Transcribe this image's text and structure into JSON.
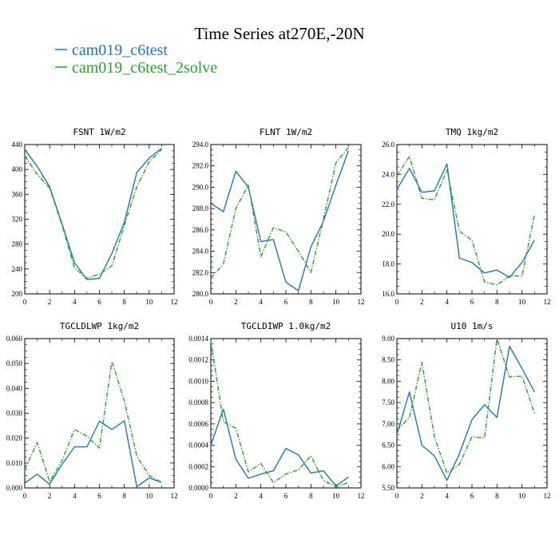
{
  "figure": {
    "title": "Time Series at270E,-20N",
    "legend": [
      {
        "name": "cam019_c6test",
        "color": "#1f77b4"
      },
      {
        "name": "cam019_c6test_2solve",
        "color": "#2ca02c"
      }
    ]
  },
  "chart_data": [
    {
      "type": "line",
      "title": "FSNT   1W/m2",
      "x": [
        0,
        1,
        2,
        3,
        4,
        5,
        6,
        7,
        8,
        9,
        10,
        11
      ],
      "xlim": [
        0,
        12
      ],
      "xticks": [
        0,
        2,
        4,
        6,
        8,
        10,
        12
      ],
      "xticklabels": [
        "0",
        "2",
        "4",
        "6",
        "8",
        "10",
        "12"
      ],
      "ylim": [
        200,
        440
      ],
      "yticks": [
        200,
        240,
        280,
        320,
        360,
        400,
        440
      ],
      "yticklabels": [
        "200",
        "240",
        "280",
        "320",
        "360",
        "400",
        "440"
      ],
      "series": [
        {
          "name": "cam019_c6test",
          "color": "#1f77b4",
          "dash": "solid",
          "values": [
            432,
            405,
            372,
            312,
            250,
            223,
            225,
            265,
            315,
            395,
            418,
            434
          ]
        },
        {
          "name": "cam019_c6test_2solve",
          "color": "#2ca02c",
          "dash": "dashdot",
          "values": [
            422,
            392,
            370,
            310,
            242,
            225,
            232,
            245,
            310,
            372,
            412,
            432
          ]
        }
      ]
    },
    {
      "type": "line",
      "title": "FLNT   1W/m2",
      "x": [
        0,
        1,
        2,
        3,
        4,
        5,
        6,
        7,
        8,
        9,
        10,
        11
      ],
      "xlim": [
        0,
        12
      ],
      "xticks": [
        0,
        2,
        4,
        6,
        8,
        10,
        12
      ],
      "xticklabels": [
        "0",
        "2",
        "4",
        "6",
        "8",
        "10",
        "12"
      ],
      "ylim": [
        280,
        294
      ],
      "yticks": [
        280,
        282,
        284,
        286,
        288,
        290,
        292,
        294
      ],
      "yticklabels": [
        "280.0",
        "282.0",
        "284.0",
        "286.0",
        "288.0",
        "290.0",
        "292.0",
        "294.0"
      ],
      "series": [
        {
          "name": "cam019_c6test",
          "color": "#1f77b4",
          "dash": "solid",
          "values": [
            288.5,
            287.7,
            291.5,
            290.0,
            284.9,
            285.1,
            281.1,
            280.3,
            284.4,
            286.8,
            290.2,
            293.4
          ]
        },
        {
          "name": "cam019_c6test_2solve",
          "color": "#2ca02c",
          "dash": "dashdot",
          "values": [
            281.5,
            282.8,
            288.0,
            290.2,
            283.5,
            286.2,
            285.8,
            284.0,
            282.0,
            287.0,
            292.3,
            293.7
          ]
        }
      ]
    },
    {
      "type": "line",
      "title": "TMQ   1kg/m2",
      "x": [
        0,
        1,
        2,
        3,
        4,
        5,
        6,
        7,
        8,
        9,
        10,
        11
      ],
      "xlim": [
        0,
        12
      ],
      "xticks": [
        0,
        2,
        4,
        6,
        8,
        10,
        12
      ],
      "xticklabels": [
        "0",
        "2",
        "4",
        "6",
        "8",
        "10",
        "12"
      ],
      "ylim": [
        16,
        26
      ],
      "yticks": [
        16,
        18,
        20,
        22,
        24,
        26
      ],
      "yticklabels": [
        "16.0",
        "18.0",
        "20.0",
        "22.0",
        "24.0",
        "26.0"
      ],
      "series": [
        {
          "name": "cam019_c6test",
          "color": "#1f77b4",
          "dash": "solid",
          "values": [
            23.0,
            24.4,
            22.8,
            22.9,
            24.7,
            18.4,
            18.1,
            17.4,
            17.6,
            17.1,
            18.1,
            19.6
          ]
        },
        {
          "name": "cam019_c6test_2solve",
          "color": "#2ca02c",
          "dash": "dashdot",
          "values": [
            23.9,
            25.2,
            22.4,
            22.3,
            24.3,
            20.2,
            19.6,
            16.8,
            16.6,
            17.2,
            17.2,
            21.3
          ]
        }
      ]
    },
    {
      "type": "line",
      "title": "TGCLDLWP   1kg/m2",
      "x": [
        0,
        1,
        2,
        3,
        4,
        5,
        6,
        7,
        8,
        9,
        10,
        11
      ],
      "xlim": [
        0,
        12
      ],
      "xticks": [
        0,
        2,
        4,
        6,
        8,
        10,
        12
      ],
      "xticklabels": [
        "0",
        "2",
        "4",
        "6",
        "8",
        "10",
        "12"
      ],
      "ylim": [
        0,
        0.06
      ],
      "yticks": [
        0,
        0.01,
        0.02,
        0.03,
        0.04,
        0.05,
        0.06
      ],
      "yticklabels": [
        "0.000",
        "0.010",
        "0.020",
        "0.030",
        "0.040",
        "0.050",
        "0.060"
      ],
      "series": [
        {
          "name": "cam019_c6test",
          "color": "#1f77b4",
          "dash": "solid",
          "values": [
            0.002,
            0.0055,
            0.0015,
            0.0095,
            0.0165,
            0.0165,
            0.0268,
            0.0235,
            0.027,
            0.0005,
            0.004,
            0.0022
          ]
        },
        {
          "name": "cam019_c6test_2solve",
          "color": "#2ca02c",
          "dash": "dashdot",
          "values": [
            0.0075,
            0.0182,
            0.0025,
            0.011,
            0.0235,
            0.0208,
            0.016,
            0.0508,
            0.035,
            0.0128,
            0.005,
            0.0022
          ]
        }
      ]
    },
    {
      "type": "line",
      "title": "TGCLDIWP   1.0kg/m2",
      "x": [
        0,
        1,
        2,
        3,
        4,
        5,
        6,
        7,
        8,
        9,
        10,
        11
      ],
      "xlim": [
        0,
        12
      ],
      "xticks": [
        0,
        2,
        4,
        6,
        8,
        10,
        12
      ],
      "xticklabels": [
        "0",
        "2",
        "4",
        "6",
        "8",
        "10",
        "12"
      ],
      "ylim": [
        0,
        0.0014
      ],
      "yticks": [
        0,
        0.0002,
        0.0004,
        0.0006,
        0.0008,
        0.001,
        0.0012,
        0.0014
      ],
      "yticklabels": [
        "0.0000",
        "0.0002",
        "0.0004",
        "0.0006",
        "0.0008",
        "0.0010",
        "0.0012",
        "0.0014"
      ],
      "series": [
        {
          "name": "cam019_c6test",
          "color": "#1f77b4",
          "dash": "solid",
          "values": [
            0.0004,
            0.00074,
            0.00027,
            9e-05,
            0.00013,
            0.00016,
            0.00037,
            0.00031,
            0.00014,
            0.00016,
            2e-05,
            0.0001
          ]
        },
        {
          "name": "cam019_c6test_2solve",
          "color": "#2ca02c",
          "dash": "dashdot",
          "values": [
            0.00138,
            0.00062,
            0.00056,
            0.00015,
            0.00023,
            5e-05,
            0.00013,
            0.00017,
            0.0003,
            7e-05,
            1e-05,
            5e-05
          ]
        }
      ]
    },
    {
      "type": "line",
      "title": "U10   1m/s",
      "x": [
        0,
        1,
        2,
        3,
        4,
        5,
        6,
        7,
        8,
        9,
        10,
        11
      ],
      "xlim": [
        0,
        12
      ],
      "xticks": [
        0,
        2,
        4,
        6,
        8,
        10,
        12
      ],
      "xticklabels": [
        "0",
        "2",
        "4",
        "6",
        "8",
        "10",
        "12"
      ],
      "ylim": [
        5.5,
        9.0
      ],
      "yticks": [
        5.5,
        6.0,
        6.5,
        7.0,
        7.5,
        8.0,
        8.5,
        9.0
      ],
      "yticklabels": [
        "5.50",
        "6.00",
        "6.50",
        "7.00",
        "7.50",
        "8.00",
        "8.50",
        "9.00"
      ],
      "series": [
        {
          "name": "cam019_c6test",
          "color": "#1f77b4",
          "dash": "solid",
          "values": [
            6.75,
            7.75,
            6.5,
            6.25,
            5.68,
            6.3,
            7.1,
            7.45,
            7.15,
            8.82,
            8.3,
            7.75
          ]
        },
        {
          "name": "cam019_c6test_2solve",
          "color": "#2ca02c",
          "dash": "dashdot",
          "values": [
            6.85,
            7.15,
            8.45,
            6.7,
            5.85,
            6.05,
            6.7,
            6.67,
            9.0,
            8.1,
            8.12,
            7.25
          ]
        }
      ]
    }
  ]
}
